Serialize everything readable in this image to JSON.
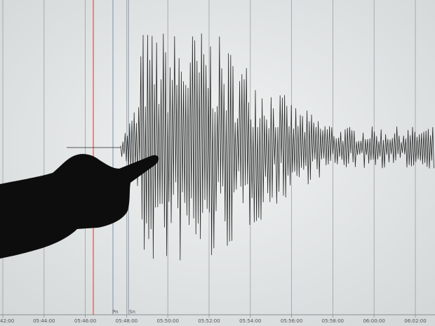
{
  "time_axis": {
    "labels": [
      "42:00",
      "05:44:00",
      "05:46:00",
      "05:48:00",
      "05:50:00",
      "05:52:00",
      "05:54:00",
      "05:56:00",
      "05:58:00",
      "06:00:00",
      "06:02:00"
    ]
  },
  "markers": {
    "pn": "Pn",
    "sn": "Sn"
  }
}
